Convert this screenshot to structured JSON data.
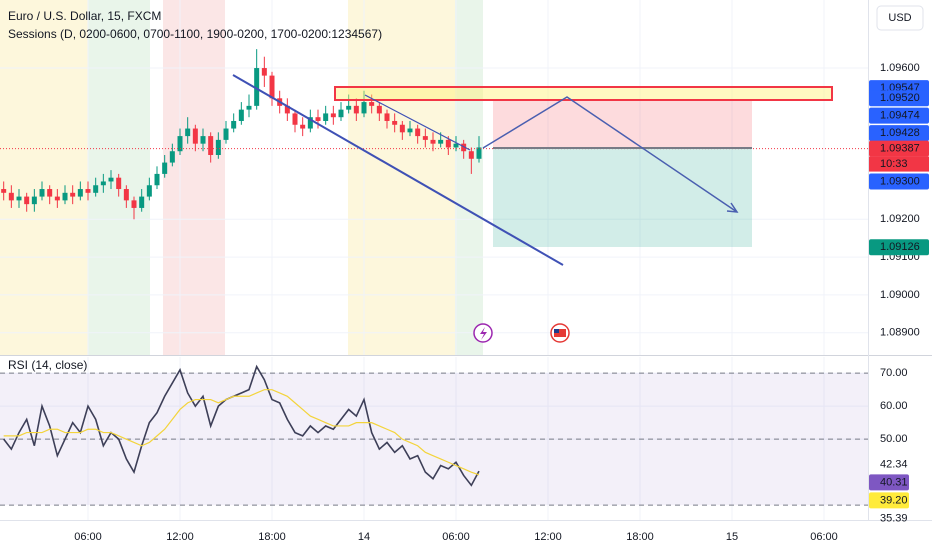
{
  "chart_data": [
    {
      "type": "candlestick",
      "title": "Euro / U.S. Dollar, 15, FXCM",
      "subtitle": "Sessions (D, 0200-0600, 0700-1100, 1900-0200, 1700-0200:1234567)",
      "currency": "USD",
      "up_color": "#089981",
      "down_color": "#f23645",
      "x": [
        0.5,
        1,
        1.5,
        2,
        2.5,
        3,
        3.5,
        4,
        4.5,
        5,
        5.5,
        6,
        6.5,
        7,
        7.5,
        8,
        8.5,
        9,
        9.5,
        10,
        10.5,
        11,
        11.5,
        12,
        12.5,
        13,
        13.5,
        14,
        14.5,
        15,
        15.5,
        16,
        16.5,
        17,
        17.5,
        18,
        18.5,
        19,
        19.5,
        20,
        20.5,
        21,
        21.5,
        22,
        22.5,
        23,
        23.5,
        24,
        24.5,
        25,
        25.5,
        26,
        26.5,
        27,
        27.5,
        28,
        28.5,
        29,
        29.5,
        30,
        30.5,
        31,
        31.5
      ],
      "open": [
        1.0928,
        1.0927,
        1.0925,
        1.0926,
        1.0924,
        1.0926,
        1.0928,
        1.0926,
        1.0925,
        1.0927,
        1.0926,
        1.0928,
        1.0927,
        1.0929,
        1.093,
        1.0931,
        1.0928,
        1.0925,
        1.0923,
        1.0926,
        1.0929,
        1.0932,
        1.0935,
        1.0938,
        1.0942,
        1.0944,
        1.094,
        1.0942,
        1.0937,
        1.0941,
        1.0944,
        1.0946,
        1.0949,
        1.095,
        1.096,
        1.0958,
        1.0952,
        1.095,
        1.0948,
        1.0945,
        1.0944,
        1.0947,
        1.0946,
        1.0948,
        1.0947,
        1.0949,
        1.095,
        1.0948,
        1.0951,
        1.095,
        1.0948,
        1.0946,
        1.0945,
        1.0943,
        1.0944,
        1.0942,
        1.0941,
        1.094,
        1.0941,
        1.0939,
        1.094,
        1.0938,
        1.0936
      ],
      "high": [
        1.093,
        1.0929,
        1.0928,
        1.0927,
        1.0928,
        1.093,
        1.0929,
        1.0928,
        1.0929,
        1.0929,
        1.093,
        1.093,
        1.0931,
        1.0932,
        1.0933,
        1.0932,
        1.0929,
        1.0926,
        1.0928,
        1.0931,
        1.0934,
        1.0937,
        1.094,
        1.0944,
        1.0947,
        1.0945,
        1.0944,
        1.0943,
        1.0943,
        1.0946,
        1.0948,
        1.0951,
        1.0953,
        1.0965,
        1.0963,
        1.0959,
        1.0954,
        1.0952,
        1.0949,
        1.0947,
        1.0949,
        1.0949,
        1.095,
        1.095,
        1.0951,
        1.0953,
        1.0952,
        1.0954,
        1.0953,
        1.0951,
        1.0949,
        1.0948,
        1.0946,
        1.0946,
        1.0945,
        1.0944,
        1.0943,
        1.0943,
        1.0942,
        1.0942,
        1.0941,
        1.0939,
        1.0942
      ],
      "low": [
        1.0925,
        1.0923,
        1.0923,
        1.0922,
        1.0922,
        1.0925,
        1.0924,
        1.0923,
        1.0924,
        1.0924,
        1.0925,
        1.0925,
        1.0926,
        1.0927,
        1.0928,
        1.0926,
        1.0923,
        1.092,
        1.0922,
        1.0925,
        1.0928,
        1.0931,
        1.0934,
        1.0937,
        1.094,
        1.0938,
        1.0938,
        1.0935,
        1.0936,
        1.094,
        1.0943,
        1.0945,
        1.0947,
        1.0949,
        1.0955,
        1.095,
        1.0948,
        1.0946,
        1.0943,
        1.0942,
        1.0943,
        1.0944,
        1.0945,
        1.0945,
        1.0946,
        1.0948,
        1.0946,
        1.0947,
        1.0948,
        1.0946,
        1.0944,
        1.0943,
        1.0941,
        1.0942,
        1.094,
        1.0939,
        1.0938,
        1.0939,
        1.0937,
        1.0938,
        1.0936,
        1.0932,
        1.0935
      ],
      "close": [
        1.0927,
        1.0925,
        1.0926,
        1.0924,
        1.0926,
        1.0928,
        1.0926,
        1.0925,
        1.0927,
        1.0926,
        1.0928,
        1.0927,
        1.0929,
        1.093,
        1.0931,
        1.0928,
        1.0925,
        1.0923,
        1.0926,
        1.0929,
        1.0932,
        1.0935,
        1.0938,
        1.0942,
        1.0944,
        1.094,
        1.0942,
        1.0937,
        1.0941,
        1.0944,
        1.0946,
        1.0949,
        1.095,
        1.096,
        1.0958,
        1.0952,
        1.095,
        1.0948,
        1.0945,
        1.0944,
        1.0947,
        1.0946,
        1.0948,
        1.0947,
        1.0949,
        1.095,
        1.0948,
        1.0951,
        1.095,
        1.0948,
        1.0946,
        1.0945,
        1.0943,
        1.0944,
        1.0942,
        1.0941,
        1.094,
        1.0941,
        1.0939,
        1.094,
        1.0938,
        1.0936,
        1.0939
      ],
      "xlim": [
        0.26,
        56.87
      ],
      "xticks": [
        {
          "value": 6,
          "label": "06:00"
        },
        {
          "value": 12,
          "label": "12:00"
        },
        {
          "value": 18,
          "label": "18:00"
        },
        {
          "value": 24,
          "label": "14"
        },
        {
          "value": 30,
          "label": "06:00"
        },
        {
          "value": 36,
          "label": "12:00"
        },
        {
          "value": 42,
          "label": "18:00"
        },
        {
          "value": 48,
          "label": "15"
        },
        {
          "value": 54,
          "label": "06:00"
        }
      ],
      "ylim": [
        1.08841,
        1.0978
      ],
      "yticks": [
        {
          "value": 1.096,
          "label": "1.09600"
        },
        {
          "value": 1.092,
          "label": "1.09200"
        },
        {
          "value": 1.091,
          "label": "1.09100"
        },
        {
          "value": 1.09,
          "label": "1.09000"
        },
        {
          "value": 1.089,
          "label": "1.08900"
        }
      ],
      "price_badges": [
        {
          "value": 1.09547,
          "label": "1.09547",
          "color": "#2962ff"
        },
        {
          "value": 1.0952,
          "label": "1.09520",
          "color": "#2962ff"
        },
        {
          "value": 1.09474,
          "label": "1.09474",
          "color": "#2962ff"
        },
        {
          "value": 1.09428,
          "label": "1.09428",
          "color": "#2962ff"
        },
        {
          "value": 1.09387,
          "label": "1.09387",
          "color": "#f23645"
        },
        {
          "value": 1.093,
          "label": "1.09300",
          "color": "#2962ff"
        },
        {
          "value": 1.09126,
          "label": "1.09126",
          "color": "#089981"
        }
      ],
      "current_price": 1.09387,
      "countdown": "10:33",
      "grid": true
    },
    {
      "type": "line",
      "title": "RSI (14, close)",
      "x": [
        0.5,
        1,
        1.5,
        2,
        2.5,
        3,
        3.5,
        4,
        4.5,
        5,
        5.5,
        6,
        6.5,
        7,
        7.5,
        8,
        8.5,
        9,
        9.5,
        10,
        10.5,
        11,
        11.5,
        12,
        12.5,
        13,
        13.5,
        14,
        14.5,
        15,
        15.5,
        16,
        16.5,
        17,
        17.5,
        18,
        18.5,
        19,
        19.5,
        20,
        20.5,
        21,
        21.5,
        22,
        22.5,
        23,
        23.5,
        24,
        24.5,
        25,
        25.5,
        26,
        26.5,
        27,
        27.5,
        28,
        28.5,
        29,
        29.5,
        30,
        30.5,
        31,
        31.5
      ],
      "series": [
        {
          "color": "#3d3f58",
          "values": [
            50,
            47,
            52,
            56,
            48,
            60,
            54,
            45,
            50,
            55,
            52,
            60,
            56,
            48,
            52,
            50,
            44,
            40,
            48,
            55,
            58,
            63,
            67,
            71,
            64,
            60,
            63,
            54,
            60,
            62,
            63,
            64,
            65,
            72,
            68,
            62,
            61,
            56,
            52,
            51,
            54,
            52,
            54,
            53,
            56,
            59,
            57,
            62,
            52,
            47,
            49,
            46,
            48,
            44,
            45,
            40,
            38,
            42,
            41,
            43,
            39,
            36,
            40.31
          ]
        },
        {
          "color": "#f3d43b",
          "values": [
            51,
            51,
            51,
            52,
            52,
            52,
            53,
            53,
            52,
            52,
            52,
            53,
            53,
            52,
            52,
            51,
            50,
            49,
            48,
            49,
            51,
            53,
            56,
            59,
            61,
            62,
            62,
            62,
            61,
            62,
            63,
            63,
            63,
            64,
            65,
            65,
            64,
            63,
            61,
            59,
            57,
            56,
            55,
            54,
            54,
            54,
            55,
            55,
            55,
            54,
            53,
            52,
            50,
            49,
            48,
            46,
            45,
            44,
            43,
            42,
            41,
            40,
            39.2
          ]
        }
      ],
      "ylim": [
        25.5,
        74.9
      ],
      "yticks": [
        {
          "value": 70,
          "label": "70.00"
        },
        {
          "value": 60,
          "label": "60.00"
        },
        {
          "value": 50,
          "label": "50.00"
        }
      ],
      "bands": [
        70,
        50,
        30
      ],
      "value_badges": [
        {
          "value": 42.34,
          "label": "42.34"
        },
        {
          "value": 40.31,
          "label": "40.31",
          "color": "#7e57c2"
        },
        {
          "value": 39.2,
          "label": "39.20",
          "color": "#ffeb3b"
        },
        {
          "value": 35.39,
          "label": "35.39"
        }
      ],
      "grid": true
    }
  ]
}
